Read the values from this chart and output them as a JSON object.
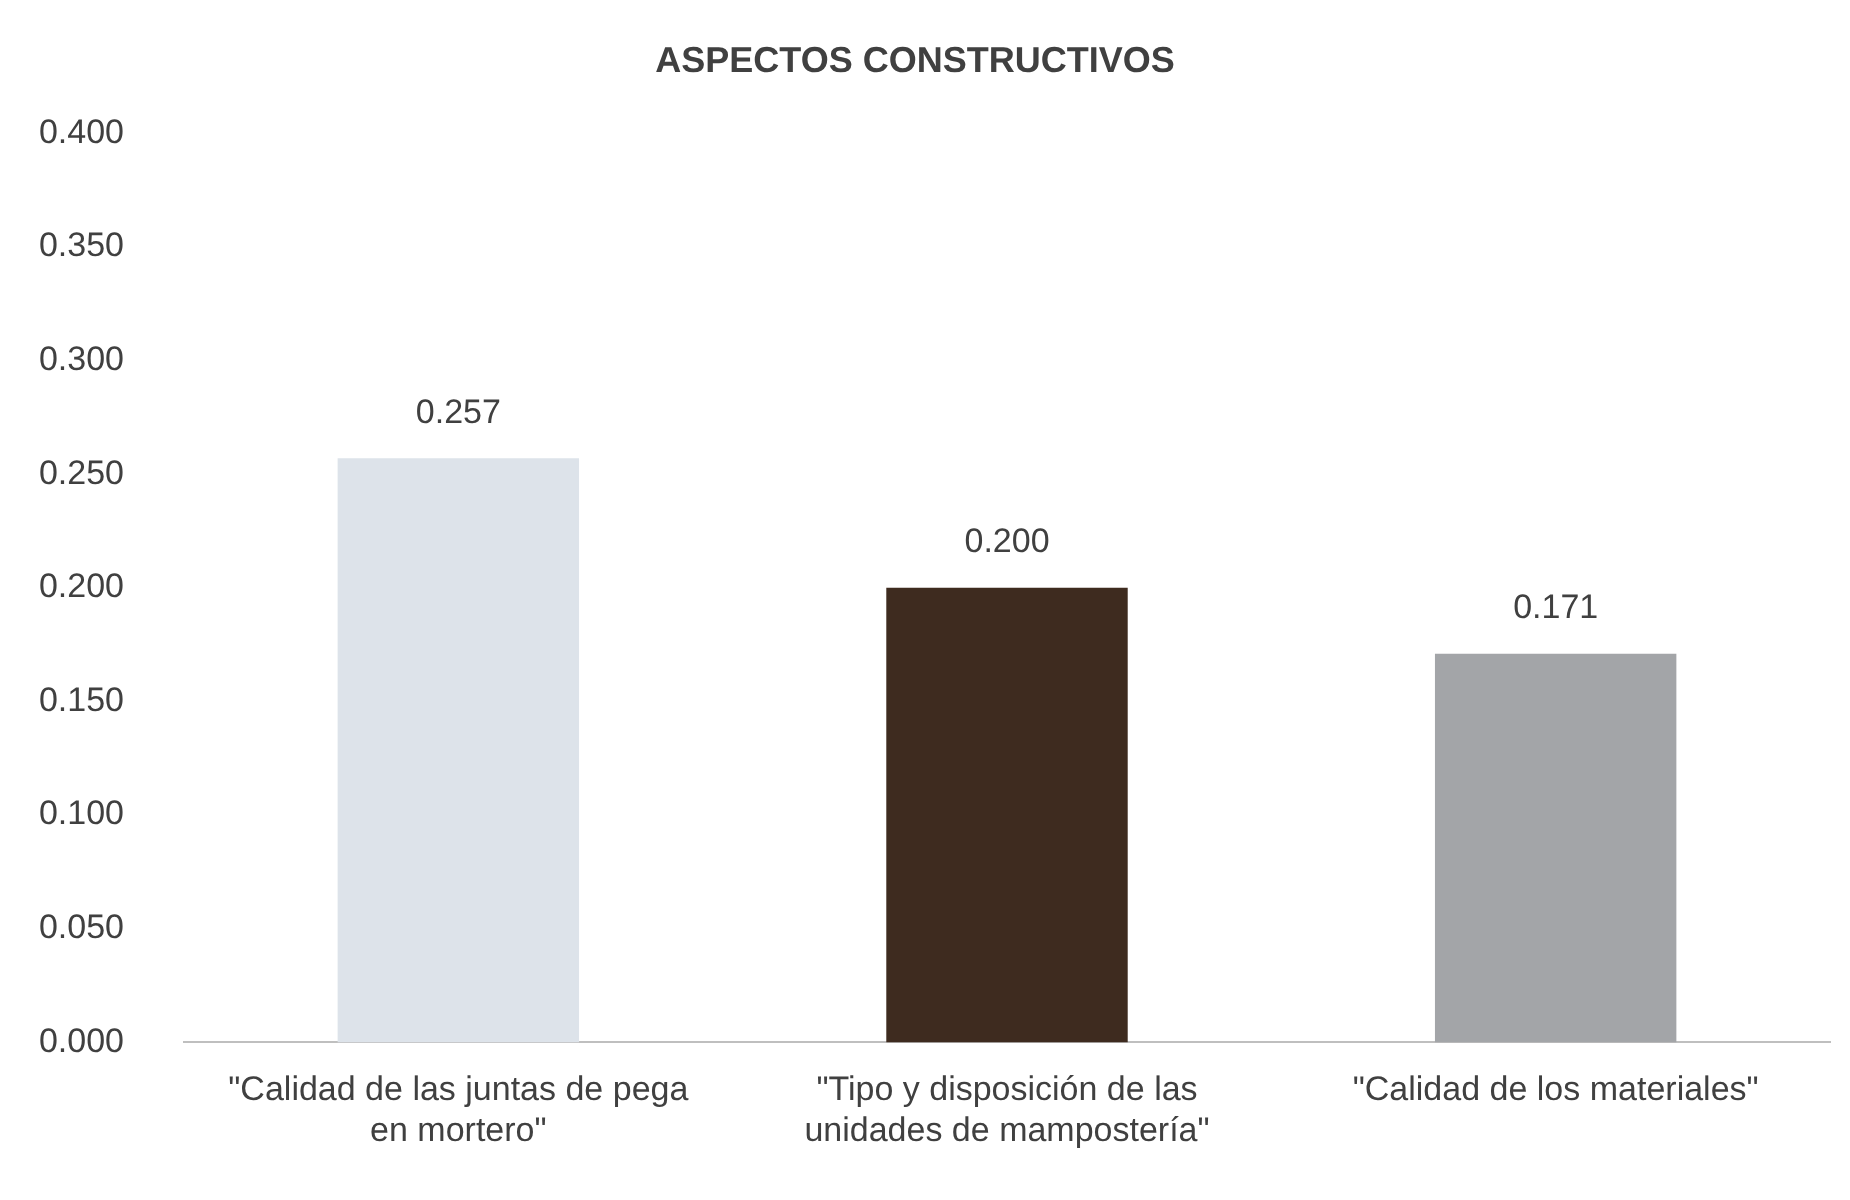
{
  "chart_data": {
    "type": "bar",
    "title": "ASPECTOS CONSTRUCTIVOS",
    "categories": [
      "\"Calidad de las juntas de pega en mortero\"",
      "\"Tipo y disposición de las unidades de mampostería\"",
      "\"Calidad de los materiales\""
    ],
    "values": [
      0.257,
      0.2,
      0.171
    ],
    "value_labels": [
      "0.257",
      "0.200",
      "0.171"
    ],
    "colors": [
      "#dde3ea",
      "#3e2b1f",
      "#a3a5a8"
    ],
    "ylim": [
      0,
      0.4
    ],
    "yticks": [
      {
        "value": 0,
        "label": "0.000"
      },
      {
        "value": 0.05,
        "label": "0.050"
      },
      {
        "value": 0.1,
        "label": "0.100"
      },
      {
        "value": 0.15,
        "label": "0.150"
      },
      {
        "value": 0.2,
        "label": "0.200"
      },
      {
        "value": 0.25,
        "label": "0.250"
      },
      {
        "value": 0.3,
        "label": "0.300"
      },
      {
        "value": 0.35,
        "label": "0.350"
      },
      {
        "value": 0.4,
        "label": "0.400"
      }
    ],
    "grid": false,
    "legend": false
  }
}
